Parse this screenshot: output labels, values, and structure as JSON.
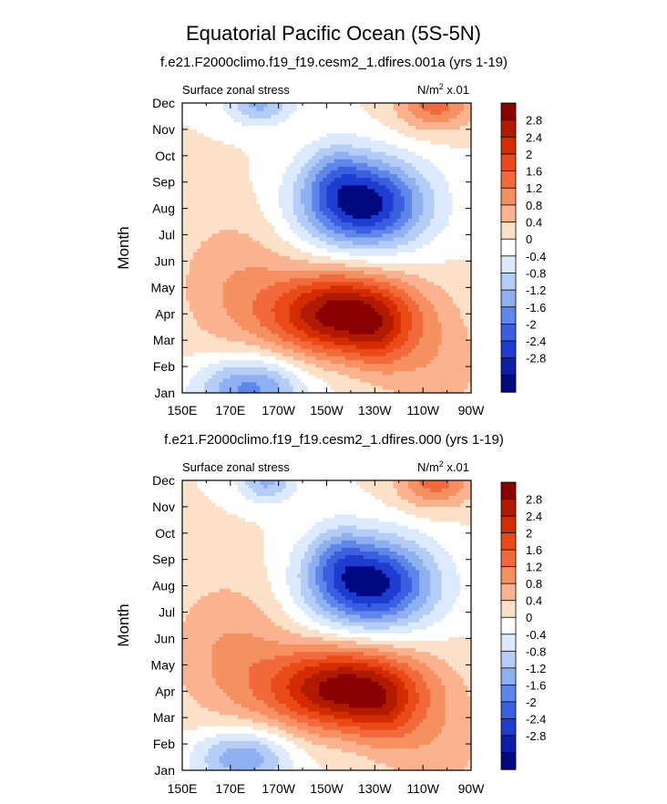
{
  "title": "Equatorial Pacific Ocean (5S-5N)",
  "colorbar": {
    "labels": [
      "2.8",
      "2.4",
      "2",
      "1.6",
      "1.2",
      "0.8",
      "0.4",
      "0",
      "-0.4",
      "-0.8",
      "-1.2",
      "-1.6",
      "-2",
      "-2.4",
      "-2.8"
    ],
    "colors": [
      "#8b0000",
      "#b01b00",
      "#d42b00",
      "#ea4a16",
      "#f26a3c",
      "#f79060",
      "#fbb28e",
      "#fde0c8",
      "#ffffff",
      "#dceaff",
      "#b4cdf6",
      "#8fb0f0",
      "#5e86eb",
      "#3a5fe0",
      "#1f3cd0",
      "#0c1ea8",
      "#000a80"
    ]
  },
  "chart_data": [
    {
      "type": "heatmap",
      "subtitle": "f.e21.F2000climo.f19_f19.cesm2_1.dfires.001a (yrs 1-19)",
      "left_string": "Surface zonal stress",
      "units_prefix": "N/m",
      "units_sup": "2",
      "units_suffix": " x.01",
      "ylabel": "Month",
      "x_ticks": [
        "150E",
        "170E",
        "170W",
        "150W",
        "130W",
        "110W",
        "90W"
      ],
      "y_ticks": [
        "Jan",
        "Feb",
        "Mar",
        "Apr",
        "May",
        "Jun",
        "Jul",
        "Aug",
        "Sep",
        "Oct",
        "Nov",
        "Dec"
      ],
      "xlim": [
        150,
        270
      ],
      "ylim": [
        1,
        12
      ],
      "features": [
        {
          "x": 217,
          "y": 4.0,
          "sx": 30,
          "sy": 1.6,
          "a": 3.1
        },
        {
          "x": 232,
          "y": 3.0,
          "sx": 12,
          "sy": 1.3,
          "a": 0.6
        },
        {
          "x": 172,
          "y": 5.2,
          "sx": 26,
          "sy": 2.8,
          "a": 0.7
        },
        {
          "x": 255,
          "y": 1.8,
          "sx": 22,
          "sy": 2.2,
          "a": 0.6
        },
        {
          "x": 225,
          "y": 8.2,
          "sx": 26,
          "sy": 1.7,
          "a": -3.1
        },
        {
          "x": 213,
          "y": 9.5,
          "sx": 12,
          "sy": 1.2,
          "a": -0.6
        },
        {
          "x": 178,
          "y": 1.2,
          "sx": 22,
          "sy": 1.2,
          "a": -1.8
        },
        {
          "x": 182,
          "y": 12.0,
          "sx": 14,
          "sy": 0.8,
          "a": -1.3
        },
        {
          "x": 255,
          "y": 12.0,
          "sx": 16,
          "sy": 1.0,
          "a": 1.4
        }
      ]
    },
    {
      "type": "heatmap",
      "subtitle": "f.e21.F2000climo.f19_f19.cesm2_1.dfires.000 (yrs 1-19)",
      "left_string": "Surface zonal stress",
      "units_prefix": "N/m",
      "units_sup": "2",
      "units_suffix": " x.01",
      "ylabel": "Month",
      "x_ticks": [
        "150E",
        "170E",
        "170W",
        "150W",
        "130W",
        "110W",
        "90W"
      ],
      "y_ticks": [
        "Jan",
        "Feb",
        "Mar",
        "Apr",
        "May",
        "Jun",
        "Jul",
        "Aug",
        "Sep",
        "Oct",
        "Nov",
        "Dec"
      ],
      "xlim": [
        150,
        270
      ],
      "ylim": [
        1,
        12
      ],
      "features": [
        {
          "x": 218,
          "y": 4.1,
          "sx": 32,
          "sy": 1.6,
          "a": 3.1
        },
        {
          "x": 234,
          "y": 3.1,
          "sx": 12,
          "sy": 1.3,
          "a": 0.6
        },
        {
          "x": 170,
          "y": 5.6,
          "sx": 26,
          "sy": 2.8,
          "a": 0.8
        },
        {
          "x": 255,
          "y": 1.8,
          "sx": 22,
          "sy": 2.2,
          "a": 0.6
        },
        {
          "x": 228,
          "y": 8.1,
          "sx": 26,
          "sy": 1.7,
          "a": -3.1
        },
        {
          "x": 214,
          "y": 9.3,
          "sx": 12,
          "sy": 1.2,
          "a": -0.6
        },
        {
          "x": 175,
          "y": 1.5,
          "sx": 20,
          "sy": 1.1,
          "a": -1.6
        },
        {
          "x": 185,
          "y": 12.0,
          "sx": 12,
          "sy": 0.8,
          "a": -1.3
        },
        {
          "x": 255,
          "y": 12.0,
          "sx": 16,
          "sy": 1.0,
          "a": 1.4
        }
      ]
    }
  ]
}
